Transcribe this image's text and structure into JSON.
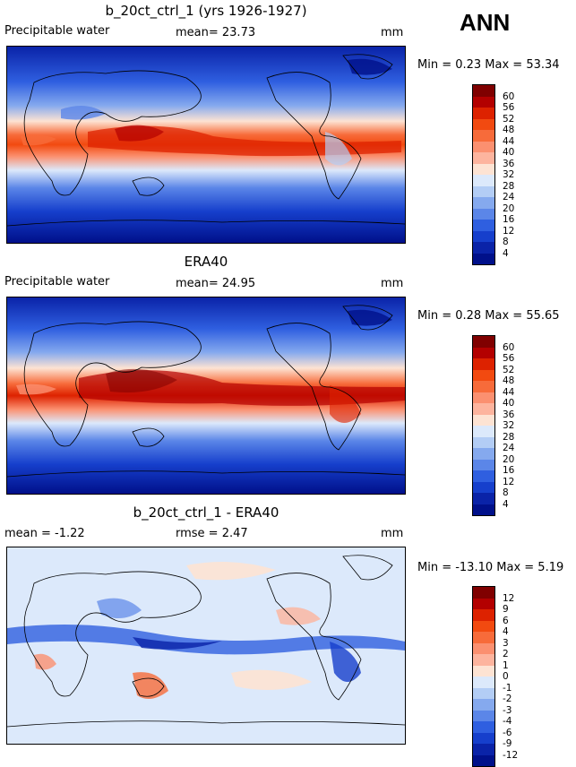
{
  "season": "ANN",
  "panels": [
    {
      "id": "model",
      "title": "b_20ct_ctrl_1 (yrs 1926-1927)",
      "left_label": "Precipitable water",
      "mid_label": "mean=  23.73",
      "units": "mm",
      "minmax": "Min =   0.23 Max =  53.34",
      "colorbar": {
        "labels": [
          "60",
          "56",
          "52",
          "48",
          "44",
          "40",
          "36",
          "32",
          "28",
          "24",
          "20",
          "16",
          "12",
          "8",
          "4"
        ],
        "colors": [
          "#800000",
          "#b30000",
          "#dd2200",
          "#f24a10",
          "#f76b3a",
          "#fb9070",
          "#fdb49e",
          "#fde3d3",
          "#dce9fb",
          "#b3cdf5",
          "#85a9ee",
          "#5b86e8",
          "#2f5fe0",
          "#163fcc",
          "#0a23a8",
          "#00108a"
        ]
      }
    },
    {
      "id": "obs",
      "title": "ERA40",
      "left_label": "Precipitable water",
      "mid_label": "mean=  24.95",
      "units": "mm",
      "minmax": "Min =   0.28 Max =  55.65",
      "colorbar": {
        "labels": [
          "60",
          "56",
          "52",
          "48",
          "44",
          "40",
          "36",
          "32",
          "28",
          "24",
          "20",
          "16",
          "12",
          "8",
          "4"
        ],
        "colors": [
          "#800000",
          "#b30000",
          "#dd2200",
          "#f24a10",
          "#f76b3a",
          "#fb9070",
          "#fdb49e",
          "#fde3d3",
          "#dce9fb",
          "#b3cdf5",
          "#85a9ee",
          "#5b86e8",
          "#2f5fe0",
          "#163fcc",
          "#0a23a8",
          "#00108a"
        ]
      }
    },
    {
      "id": "diff",
      "title": "b_20ct_ctrl_1 - ERA40",
      "left_label": "mean =  -1.22",
      "mid_label": "rmse =   2.47",
      "units": "mm",
      "minmax": "Min = -13.10 Max =   5.19",
      "colorbar": {
        "labels": [
          "12",
          "9",
          "6",
          "4",
          "3",
          "2",
          "1",
          "0",
          "-1",
          "-2",
          "-3",
          "-4",
          "-6",
          "-9",
          "-12"
        ],
        "colors": [
          "#800000",
          "#b30000",
          "#dd2200",
          "#f24a10",
          "#f76b3a",
          "#fb9070",
          "#fdb49e",
          "#fde3d3",
          "#dce9fb",
          "#b3cdf5",
          "#85a9ee",
          "#5b86e8",
          "#2f5fe0",
          "#163fcc",
          "#0a23a8",
          "#00108a"
        ]
      }
    }
  ]
}
